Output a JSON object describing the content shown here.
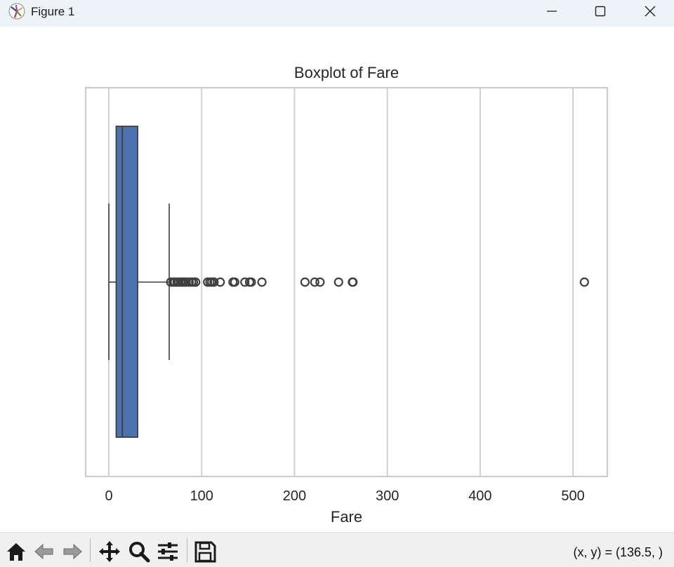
{
  "window": {
    "title": "Figure 1"
  },
  "toolbar": {
    "buttons": [
      "home-icon",
      "back-icon",
      "forward-icon",
      "pan-icon",
      "zoom-icon",
      "configure-subplots-icon",
      "save-icon"
    ],
    "coords_text": "(x, y) = (136.5, )"
  },
  "chart_data": {
    "type": "boxplot",
    "orientation": "horizontal",
    "title": "Boxplot of Fare",
    "xlabel": "Fare",
    "ylabel": "",
    "xlim": [
      -25,
      537
    ],
    "xticks": [
      0,
      100,
      200,
      300,
      400,
      500
    ],
    "xtick_labels": [
      "0",
      "100",
      "200",
      "300",
      "400",
      "500"
    ],
    "grid": "vertical",
    "box": {
      "whisker_low": 0,
      "q1": 7.9,
      "median": 14.5,
      "q3": 31.0,
      "whisker_high": 65.0,
      "color": "#4c72b0"
    },
    "outliers": [
      66.6,
      69.5,
      71.0,
      73.5,
      75.3,
      77.3,
      78.9,
      80.0,
      82.2,
      83.2,
      86.5,
      89.1,
      91.1,
      93.5,
      106.4,
      108.9,
      110.9,
      113.3,
      120.0,
      133.7,
      135.6,
      146.5,
      151.6,
      153.5,
      164.9,
      211.3,
      221.8,
      227.5,
      247.5,
      262.4,
      263.0,
      512.3
    ]
  }
}
